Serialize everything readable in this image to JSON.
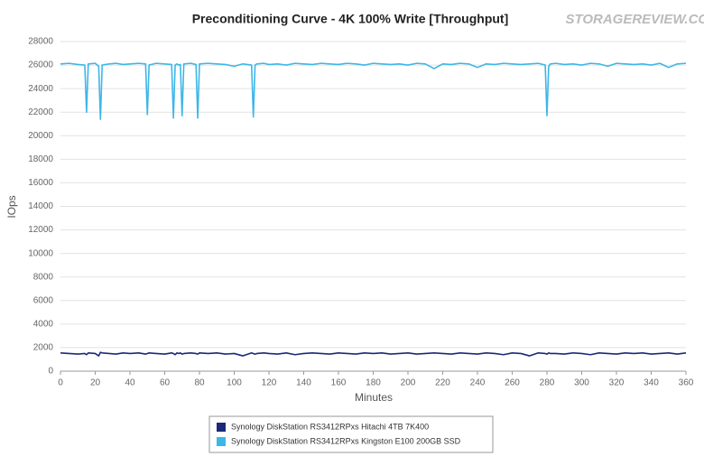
{
  "chart_data": {
    "type": "line",
    "title": "Preconditioning Curve - 4K 100% Write [Throughput]",
    "watermark": "STORAGEREVIEW.COM",
    "xlabel": "Minutes",
    "ylabel": "IOps",
    "x": [
      0,
      5,
      10,
      14,
      15,
      16,
      20,
      22,
      23,
      24,
      28,
      32,
      36,
      40,
      45,
      49,
      50,
      51,
      55,
      60,
      64,
      65,
      66,
      67,
      68,
      69,
      70,
      71,
      75,
      78,
      79,
      80,
      85,
      90,
      95,
      100,
      105,
      110,
      111,
      112,
      113,
      117,
      120,
      125,
      130,
      135,
      140,
      145,
      150,
      155,
      160,
      165,
      170,
      175,
      180,
      185,
      190,
      195,
      200,
      205,
      210,
      215,
      220,
      225,
      230,
      235,
      240,
      245,
      250,
      255,
      260,
      265,
      270,
      275,
      279,
      280,
      281,
      282,
      285,
      290,
      295,
      300,
      305,
      310,
      315,
      320,
      325,
      330,
      335,
      340,
      345,
      350,
      355,
      360
    ],
    "series": [
      {
        "name": "Synology DiskStation RS3412RPxs Hitachi 4TB 7K400",
        "color": "#1b2a78",
        "values": [
          1550,
          1500,
          1450,
          1500,
          1400,
          1550,
          1500,
          1300,
          1600,
          1550,
          1500,
          1450,
          1550,
          1500,
          1550,
          1450,
          1500,
          1550,
          1500,
          1450,
          1550,
          1500,
          1400,
          1550,
          1500,
          1550,
          1450,
          1500,
          1550,
          1500,
          1450,
          1550,
          1500,
          1550,
          1450,
          1500,
          1300,
          1550,
          1500,
          1450,
          1500,
          1550,
          1500,
          1450,
          1550,
          1400,
          1500,
          1550,
          1500,
          1450,
          1550,
          1500,
          1450,
          1550,
          1500,
          1550,
          1450,
          1500,
          1550,
          1450,
          1500,
          1550,
          1500,
          1450,
          1550,
          1500,
          1450,
          1550,
          1500,
          1400,
          1550,
          1500,
          1300,
          1550,
          1500,
          1450,
          1550,
          1500,
          1500,
          1450,
          1550,
          1500,
          1400,
          1550,
          1500,
          1450,
          1550,
          1500,
          1550,
          1450,
          1500,
          1550,
          1450,
          1550
        ]
      },
      {
        "name": "Synology DiskStation RS3412RPxs Kingston E100 200GB SSD",
        "color": "#3db6e8",
        "values": [
          26100,
          26150,
          26050,
          26000,
          22000,
          26100,
          26150,
          25900,
          21400,
          26000,
          26100,
          26150,
          26050,
          26100,
          26150,
          26100,
          21800,
          26000,
          26150,
          26100,
          26050,
          21500,
          26000,
          26100,
          26000,
          26050,
          21700,
          26100,
          26150,
          26050,
          21500,
          26100,
          26150,
          26100,
          26050,
          25900,
          26100,
          26000,
          21600,
          26000,
          26100,
          26150,
          26050,
          26100,
          26000,
          26150,
          26100,
          26050,
          26150,
          26100,
          26050,
          26150,
          26100,
          26000,
          26150,
          26100,
          26050,
          26100,
          26000,
          26150,
          26100,
          25700,
          26100,
          26050,
          26150,
          26100,
          25800,
          26100,
          26050,
          26150,
          26100,
          26050,
          26100,
          26150,
          26000,
          21700,
          25900,
          26100,
          26150,
          26050,
          26100,
          26000,
          26150,
          26100,
          25900,
          26150,
          26100,
          26050,
          26100,
          26000,
          26150,
          25800,
          26100,
          26150
        ]
      }
    ],
    "xlim": [
      0,
      360
    ],
    "xticks": [
      0,
      20,
      40,
      60,
      80,
      100,
      120,
      140,
      160,
      180,
      200,
      220,
      240,
      260,
      280,
      300,
      320,
      340,
      360
    ],
    "ylim": [
      0,
      28000
    ],
    "yticks": [
      0,
      2000,
      4000,
      6000,
      8000,
      10000,
      12000,
      14000,
      16000,
      18000,
      20000,
      22000,
      24000,
      26000,
      28000
    ],
    "grid": true,
    "legend": "bottom"
  }
}
